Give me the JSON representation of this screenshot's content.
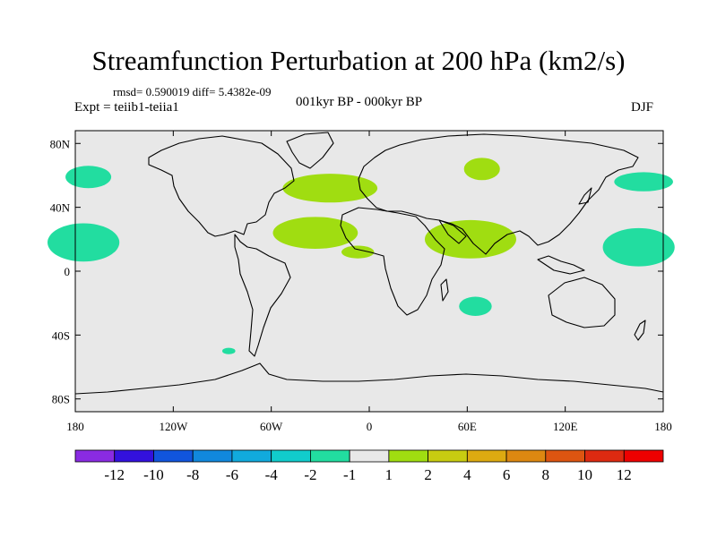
{
  "header": {
    "title": "Streamfunction Perturbation at 200 hPa (km2/s)",
    "stats": "rmsd= 0.590019 diff= 5.4382e-09",
    "experiment": "Expt = teiib1-teiia1",
    "period": "001kyr BP - 000kyr BP",
    "season": "DJF"
  },
  "map": {
    "lat_ticks": [
      {
        "value": 80,
        "label": "80N"
      },
      {
        "value": 40,
        "label": "40N"
      },
      {
        "value": 0,
        "label": "0"
      },
      {
        "value": -40,
        "label": "40S"
      },
      {
        "value": -80,
        "label": "80S"
      }
    ],
    "lon_ticks": [
      {
        "value": -180,
        "label": "180"
      },
      {
        "value": -120,
        "label": "120W"
      },
      {
        "value": -60,
        "label": "60W"
      },
      {
        "value": 0,
        "label": "0"
      },
      {
        "value": 60,
        "label": "60E"
      },
      {
        "value": 120,
        "label": "120E"
      },
      {
        "value": 180,
        "label": "180"
      }
    ],
    "background_color": "#e8e8e8",
    "regions": [
      {
        "class": "-2 to -1",
        "color": "#22dda0",
        "lon": -172,
        "lat": 59,
        "rlon": 14,
        "rlat": 7
      },
      {
        "class": "-2 to -1",
        "color": "#22dda0",
        "lon": -175,
        "lat": 18,
        "rlon": 22,
        "rlat": 12
      },
      {
        "class": "-2 to -1",
        "color": "#22dda0",
        "lon": 168,
        "lat": 56,
        "rlon": 18,
        "rlat": 6
      },
      {
        "class": "-2 to -1",
        "color": "#22dda0",
        "lon": 165,
        "lat": 15,
        "rlon": 22,
        "rlat": 12
      },
      {
        "class": "-2 to -1",
        "color": "#22dda0",
        "lon": 65,
        "lat": -22,
        "rlon": 10,
        "rlat": 6
      },
      {
        "class": "-2 to -1",
        "color": "#22dda0",
        "lon": -86,
        "lat": -50,
        "rlon": 4,
        "rlat": 2
      },
      {
        "class": "1 to 2",
        "color": "#a0dd11",
        "lon": -24,
        "lat": 52,
        "rlon": 29,
        "rlat": 9
      },
      {
        "class": "1 to 2",
        "color": "#a0dd11",
        "lon": -33,
        "lat": 24,
        "rlon": 26,
        "rlat": 10
      },
      {
        "class": "1 to 2",
        "color": "#a0dd11",
        "lon": -7,
        "lat": 12,
        "rlon": 10,
        "rlat": 4
      },
      {
        "class": "1 to 2",
        "color": "#a0dd11",
        "lon": 62,
        "lat": 20,
        "rlon": 28,
        "rlat": 12
      },
      {
        "class": "1 to 2",
        "color": "#a0dd11",
        "lon": 69,
        "lat": 64,
        "rlon": 11,
        "rlat": 7
      }
    ]
  },
  "colorbar": {
    "colors": [
      "#8a2be2",
      "#3311dd",
      "#1155dd",
      "#1188dd",
      "#11aadd",
      "#11cccc",
      "#22dda0",
      "#e8e8e8",
      "#a0dd11",
      "#c8cc11",
      "#ddaa11",
      "#dd8811",
      "#dd5511",
      "#dd2a11",
      "#ee0000"
    ],
    "labels": [
      "-12",
      "-10",
      "-8",
      "-6",
      "-4",
      "-2",
      "-1",
      "1",
      "2",
      "4",
      "6",
      "8",
      "10",
      "12"
    ]
  }
}
